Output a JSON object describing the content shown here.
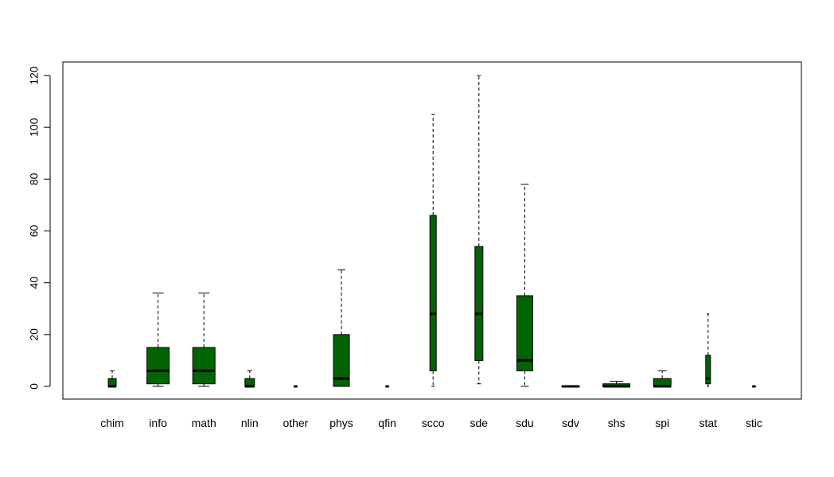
{
  "chart_data": {
    "type": "boxplot",
    "title": "",
    "xlabel": "",
    "ylabel": "",
    "ylim": [
      -5,
      125
    ],
    "y_ticks": [
      0,
      20,
      40,
      60,
      80,
      100,
      120
    ],
    "y_tick_labels": [
      "0",
      "20",
      "40",
      "60",
      "80",
      "100",
      "120"
    ],
    "grid": false,
    "legend": "none",
    "box_color": "#006400",
    "median_color": "#000000",
    "categories": [
      "chim",
      "info",
      "math",
      "nlin",
      "other",
      "phys",
      "qfin",
      "scco",
      "sde",
      "sdu",
      "sdv",
      "shs",
      "spi",
      "stat",
      "stic"
    ],
    "boxes": [
      {
        "label": "chim",
        "width": 0.25,
        "whisker_low": 0,
        "q1": 0,
        "median": 0,
        "q3": 3,
        "whisker_high": 6
      },
      {
        "label": "info",
        "width": 0.7,
        "whisker_low": 0,
        "q1": 1,
        "median": 6,
        "q3": 15,
        "whisker_high": 36
      },
      {
        "label": "math",
        "width": 0.7,
        "whisker_low": 0,
        "q1": 1,
        "median": 6,
        "q3": 15,
        "whisker_high": 36
      },
      {
        "label": "nlin",
        "width": 0.3,
        "whisker_low": 0,
        "q1": 0,
        "median": 0,
        "q3": 3,
        "whisker_high": 6
      },
      {
        "label": "other",
        "width": 0.1,
        "whisker_low": 0,
        "q1": 0,
        "median": 0,
        "q3": 0,
        "whisker_high": 0
      },
      {
        "label": "phys",
        "width": 0.5,
        "whisker_low": 0,
        "q1": 0,
        "median": 3,
        "q3": 20,
        "whisker_high": 45
      },
      {
        "label": "qfin",
        "width": 0.1,
        "whisker_low": 0,
        "q1": 0,
        "median": 0,
        "q3": 0,
        "whisker_high": 0
      },
      {
        "label": "scco",
        "width": 0.2,
        "whisker_low": 0,
        "q1": 6,
        "median": 28,
        "q3": 66,
        "whisker_high": 105
      },
      {
        "label": "sde",
        "width": 0.25,
        "whisker_low": 1,
        "q1": 10,
        "median": 28,
        "q3": 54,
        "whisker_high": 120
      },
      {
        "label": "sdu",
        "width": 0.5,
        "whisker_low": 0,
        "q1": 6,
        "median": 10,
        "q3": 35,
        "whisker_high": 78
      },
      {
        "label": "sdv",
        "width": 0.55,
        "whisker_low": 0,
        "q1": 0,
        "median": 0,
        "q3": 0,
        "whisker_high": 0
      },
      {
        "label": "shs",
        "width": 0.85,
        "whisker_low": 0,
        "q1": 0,
        "median": 0,
        "q3": 1,
        "whisker_high": 2
      },
      {
        "label": "spi",
        "width": 0.55,
        "whisker_low": 0,
        "q1": 0,
        "median": 0,
        "q3": 3,
        "whisker_high": 6
      },
      {
        "label": "stat",
        "width": 0.15,
        "whisker_low": 0,
        "q1": 1,
        "median": 3,
        "q3": 12,
        "whisker_high": 28
      },
      {
        "label": "stic",
        "width": 0.1,
        "whisker_low": 0,
        "q1": 0,
        "median": 0,
        "q3": 0,
        "whisker_high": 0
      }
    ]
  }
}
